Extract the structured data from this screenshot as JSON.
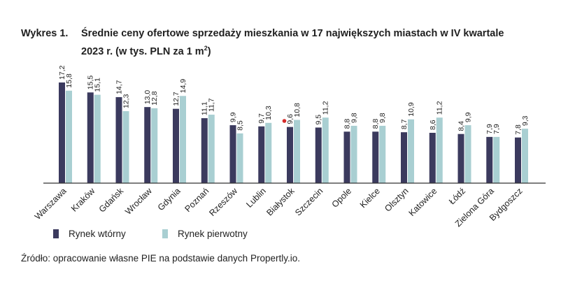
{
  "header": {
    "prefix": "Wykres 1.",
    "title_line1": "Średnie ceny ofertowe sprzedaży mieszkania w 17 największych miastach w IV kwartale",
    "title_line2_pre": "2023 r. (w tys. PLN za 1 m",
    "title_line2_sup": "2",
    "title_line2_post": ")"
  },
  "legend": {
    "secondary": "Rynek wtórny",
    "primary": "Rynek pierwotny"
  },
  "source": "Źródło: opracowanie własne PIE na podstawie danych Propertly.io.",
  "colors": {
    "secondary": "#3b3a5e",
    "primary": "#a9cfd2",
    "axis": "#333333",
    "marker": "#d62a2a"
  },
  "chart_data": {
    "type": "bar",
    "categories": [
      "Warszawa",
      "Kraków",
      "Gdańsk",
      "Wrocław",
      "Gdynia",
      "Poznań",
      "Rzeszów",
      "Lublin",
      "Białystok",
      "Szczecin",
      "Opole",
      "Kielce",
      "Olsztyn",
      "Katowice",
      "Łódź",
      "Zielona Góra",
      "Bydgoszcz"
    ],
    "series": [
      {
        "name": "Rynek wtórny",
        "values": [
          17.2,
          15.5,
          14.7,
          13.0,
          12.7,
          11.1,
          9.9,
          9.7,
          9.6,
          9.5,
          8.8,
          8.8,
          8.7,
          8.6,
          8.4,
          7.9,
          7.8
        ],
        "labels": [
          "17,2",
          "15,5",
          "14,7",
          "13,0",
          "12,7",
          "11,1",
          "9,9",
          "9,7",
          "9,6",
          "9,5",
          "8,8",
          "8,8",
          "8,7",
          "8,6",
          "8,4",
          "7,9",
          "7,8"
        ]
      },
      {
        "name": "Rynek pierwotny",
        "values": [
          15.8,
          15.1,
          12.3,
          12.8,
          14.9,
          11.7,
          8.5,
          10.3,
          10.8,
          11.2,
          9.8,
          9.8,
          10.9,
          11.2,
          9.9,
          7.9,
          9.3
        ],
        "labels": [
          "15,8",
          "15,1",
          "12,3",
          "12,8",
          "14,9",
          "11,7",
          "8,5",
          "10,3",
          "10,8",
          "11,2",
          "9,8",
          "9,8",
          "10,9",
          "11,2",
          "9,9",
          "7,9",
          "9,3"
        ]
      }
    ],
    "ylim": [
      0,
      17.2
    ],
    "grid": false,
    "legend_position": "bottom-left"
  }
}
